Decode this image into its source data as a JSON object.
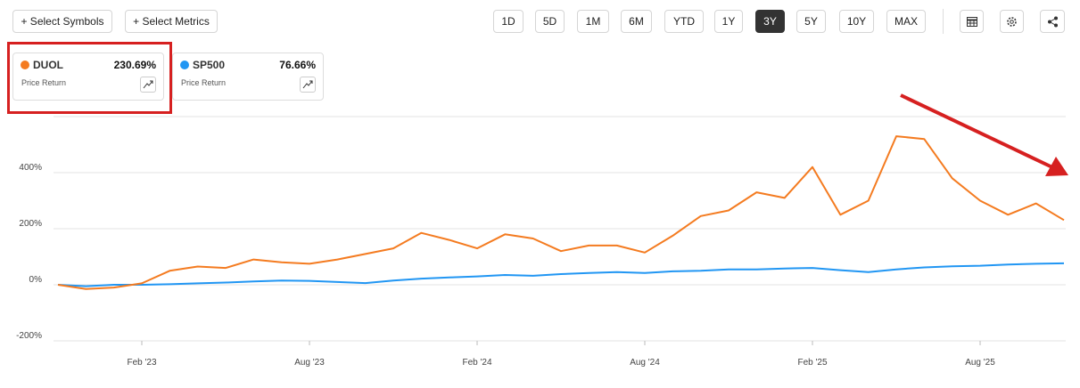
{
  "toolbar": {
    "buttons": [
      "+ Select Symbols",
      "+ Select Metrics"
    ],
    "ranges": [
      "1D",
      "5D",
      "1M",
      "6M",
      "YTD",
      "1Y",
      "3Y",
      "5Y",
      "10Y",
      "MAX"
    ],
    "active_range": "3Y"
  },
  "chart_data": {
    "type": "line",
    "x": [
      "2022-11",
      "2022-12",
      "2023-01",
      "2023-02",
      "2023-03",
      "2023-04",
      "2023-05",
      "2023-06",
      "2023-07",
      "2023-08",
      "2023-09",
      "2023-10",
      "2023-11",
      "2023-12",
      "2024-01",
      "2024-02",
      "2024-03",
      "2024-04",
      "2024-05",
      "2024-06",
      "2024-07",
      "2024-08",
      "2024-09",
      "2024-10",
      "2024-11",
      "2024-12",
      "2025-01",
      "2025-02",
      "2025-03",
      "2025-04",
      "2025-05",
      "2025-06",
      "2025-07",
      "2025-08",
      "2025-09",
      "2025-10",
      "2025-11"
    ],
    "xlim": [
      "2022-11",
      "2025-11"
    ],
    "xticks": [
      {
        "value": "2023-02",
        "label": "Feb '23"
      },
      {
        "value": "2023-08",
        "label": "Aug '23"
      },
      {
        "value": "2024-02",
        "label": "Feb '24"
      },
      {
        "value": "2024-08",
        "label": "Aug '24"
      },
      {
        "value": "2025-02",
        "label": "Feb '25"
      },
      {
        "value": "2025-08",
        "label": "Aug '25"
      }
    ],
    "ylim": [
      -200,
      600
    ],
    "yticks": [
      {
        "value": -200,
        "label": "-200%"
      },
      {
        "value": 0,
        "label": "0%"
      },
      {
        "value": 200,
        "label": "200%"
      },
      {
        "value": 400,
        "label": "400%"
      }
    ],
    "grid": true,
    "series": [
      {
        "name": "DUOL",
        "metric": "Price Return",
        "color": "#f47b20",
        "values": [
          0,
          -15,
          -10,
          5,
          50,
          65,
          60,
          90,
          80,
          75,
          90,
          110,
          130,
          185,
          160,
          130,
          180,
          165,
          120,
          140,
          140,
          115,
          175,
          245,
          265,
          330,
          310,
          420,
          250,
          300,
          530,
          520,
          380,
          300,
          250,
          290,
          230.69
        ],
        "value_labels": [
          null,
          null,
          null,
          null,
          null,
          null,
          null,
          null,
          null,
          null,
          null,
          null,
          null,
          null,
          null,
          null,
          null,
          null,
          null,
          null,
          null,
          null,
          null,
          null,
          null,
          null,
          null,
          null,
          null,
          null,
          null,
          null,
          null,
          null,
          null,
          null,
          "230.69%"
        ]
      },
      {
        "name": "SP500",
        "metric": "Price Return",
        "color": "#2196f3",
        "values": [
          0,
          -5,
          0,
          0,
          2,
          5,
          8,
          12,
          15,
          14,
          10,
          6,
          15,
          22,
          26,
          30,
          35,
          32,
          38,
          42,
          45,
          42,
          48,
          50,
          55,
          55,
          58,
          60,
          52,
          45,
          55,
          62,
          66,
          68,
          72,
          75,
          76.66
        ],
        "value_labels": [
          null,
          null,
          null,
          null,
          null,
          null,
          null,
          null,
          null,
          null,
          null,
          null,
          null,
          null,
          null,
          null,
          null,
          null,
          null,
          null,
          null,
          null,
          null,
          null,
          null,
          null,
          null,
          null,
          null,
          null,
          null,
          null,
          null,
          null,
          null,
          null,
          "76.66%"
        ]
      }
    ]
  }
}
